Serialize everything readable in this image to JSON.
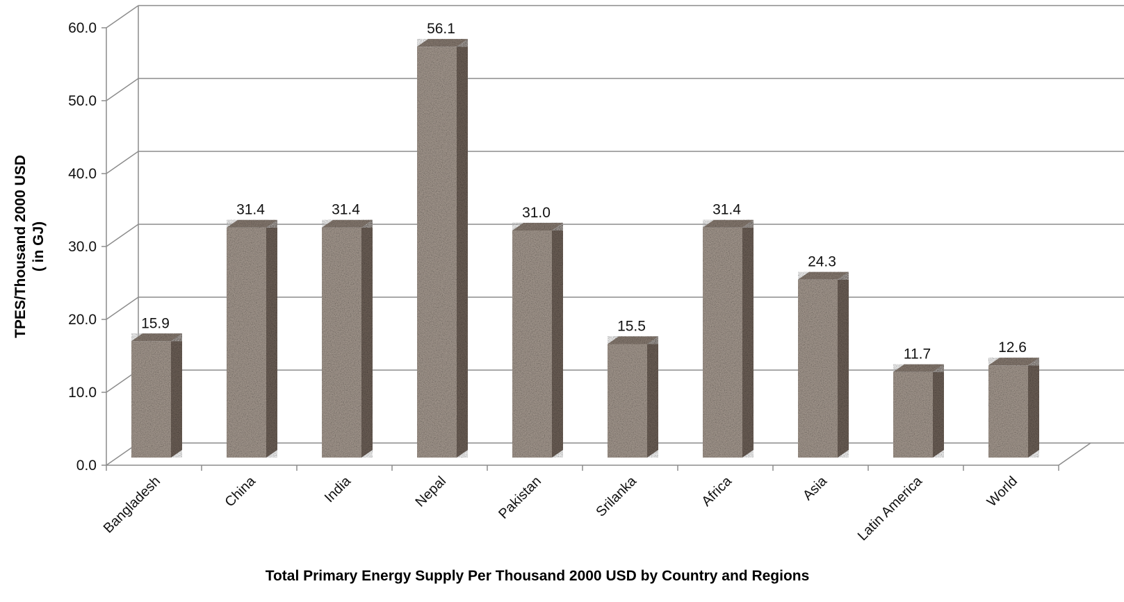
{
  "chart_data": {
    "type": "bar",
    "title": "",
    "xlabel": "Total Primary Energy Supply Per Thousand 2000  USD  by Country and Regions",
    "ylabel_line1": "TPES/Thousand 2000  USD",
    "ylabel_line2": "( in GJ)",
    "categories": [
      "Bangladesh",
      "China",
      "India",
      "Nepal",
      "Pakistan",
      "Srilanka",
      "Africa",
      "Asia",
      "Latin America",
      "World"
    ],
    "values": [
      15.9,
      31.4,
      31.4,
      56.1,
      31.0,
      15.5,
      31.4,
      24.3,
      11.7,
      12.6
    ],
    "value_labels": [
      "15.9",
      "31.4",
      "31.4",
      "56.1",
      "31.0",
      "15.5",
      "31.4",
      "24.3",
      "11.7",
      "12.6"
    ],
    "yticks": [
      "0.0",
      "10.0",
      "20.0",
      "30.0",
      "40.0",
      "50.0",
      "60.0"
    ],
    "ylim": [
      0,
      60
    ],
    "grid": true,
    "legend": "none",
    "bar_style": "3d-granite",
    "colors": {
      "bar_front": "#a89c92",
      "bar_side": "#6f6259",
      "bar_top": "#8a7d73",
      "grid": "#8c8c8c",
      "axis": "#8c8c8c"
    }
  }
}
